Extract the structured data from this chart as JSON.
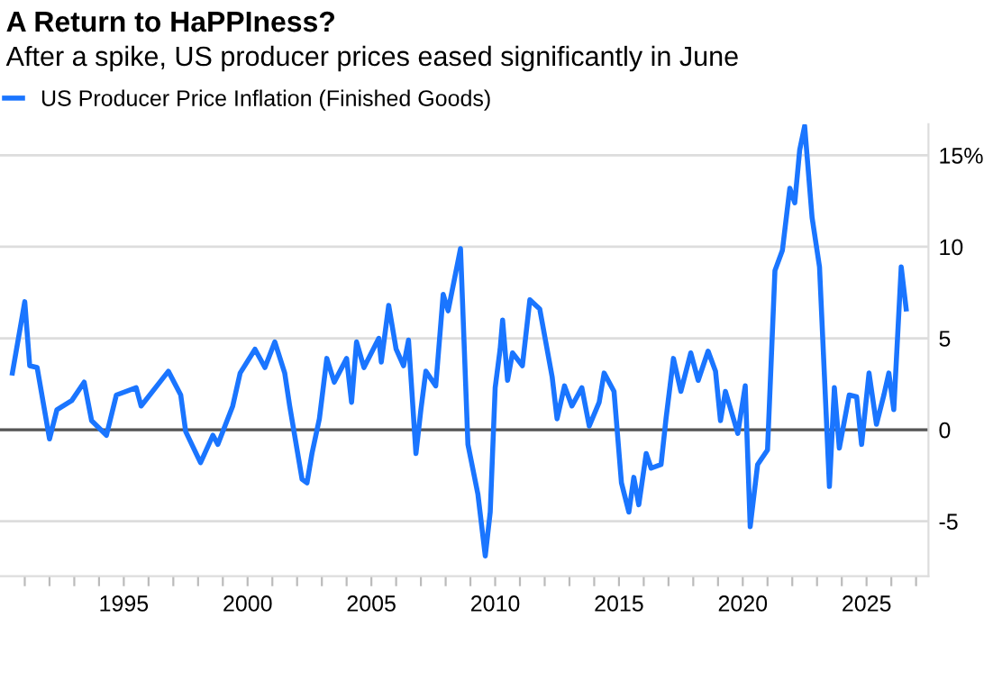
{
  "chart_data": {
    "type": "line",
    "title": "A Return to HaPPIness?",
    "subtitle": "After a spike, US producer prices eased significantly in June",
    "x": [
      1990.5,
      1991.0,
      1991.2,
      1991.5,
      1992.0,
      1992.3,
      1992.9,
      1993.4,
      1993.7,
      1994.3,
      1994.7,
      1995.5,
      1995.7,
      1996.8,
      1997.3,
      1997.5,
      1998.1,
      1998.6,
      1998.8,
      1999.4,
      1999.7,
      2000.3,
      2000.7,
      2001.1,
      2001.5,
      2001.7,
      2002.2,
      2002.4,
      2002.6,
      2002.9,
      2003.2,
      2003.5,
      2004.0,
      2004.2,
      2004.4,
      2004.7,
      2005.3,
      2005.4,
      2005.7,
      2006.0,
      2006.3,
      2006.5,
      2006.8,
      2007.0,
      2007.2,
      2007.6,
      2007.9,
      2008.1,
      2008.6,
      2008.9,
      2009.3,
      2009.6,
      2009.8,
      2010.0,
      2010.2,
      2010.3,
      2010.5,
      2010.7,
      2011.1,
      2011.4,
      2011.8,
      2012.3,
      2012.5,
      2012.8,
      2013.1,
      2013.5,
      2013.8,
      2014.2,
      2014.4,
      2014.8,
      2015.1,
      2015.4,
      2015.6,
      2015.8,
      2016.1,
      2016.3,
      2016.7,
      2016.9,
      2017.2,
      2017.5,
      2017.9,
      2018.2,
      2018.6,
      2018.9,
      2019.1,
      2019.3,
      2019.8,
      2020.1,
      2020.3,
      2020.6,
      2021.0,
      2021.3,
      2021.6,
      2021.9,
      2022.1,
      2022.3,
      2022.5,
      2022.8,
      2023.1,
      2023.3,
      2023.5,
      2023.7,
      2023.9,
      2024.3,
      2024.6,
      2024.8,
      2025.1,
      2025.4,
      2025.7,
      2025.9,
      2026.1,
      2026.4,
      2026.6
    ],
    "series": [
      {
        "name": "US Producer Price Inflation (Finished Goods)",
        "color": "#1a75ff",
        "values": [
          3.1,
          7.0,
          3.5,
          3.4,
          -0.5,
          1.1,
          1.6,
          2.6,
          0.5,
          -0.3,
          1.9,
          2.3,
          1.3,
          3.2,
          1.9,
          -0.1,
          -1.8,
          -0.3,
          -0.8,
          1.3,
          3.1,
          4.4,
          3.4,
          4.8,
          3.1,
          1.3,
          -2.7,
          -2.9,
          -1.3,
          0.6,
          3.9,
          2.6,
          3.9,
          1.5,
          4.8,
          3.4,
          5.0,
          3.7,
          6.8,
          4.4,
          3.5,
          4.9,
          -1.3,
          1.1,
          3.2,
          2.4,
          7.4,
          6.5,
          9.9,
          -0.8,
          -3.5,
          -6.9,
          -4.5,
          2.3,
          4.4,
          6.0,
          2.7,
          4.2,
          3.5,
          7.1,
          6.6,
          2.9,
          0.6,
          2.4,
          1.3,
          2.3,
          0.2,
          1.5,
          3.1,
          2.1,
          -2.9,
          -4.5,
          -2.6,
          -4.1,
          -1.3,
          -2.1,
          -1.9,
          0.6,
          3.9,
          2.1,
          4.2,
          2.7,
          4.3,
          3.2,
          0.5,
          2.1,
          -0.2,
          2.4,
          -5.3,
          -1.9,
          -1.1,
          8.7,
          9.8,
          13.2,
          12.4,
          15.3,
          16.6,
          11.6,
          8.9,
          2.9,
          -3.1,
          2.3,
          -1.0,
          1.9,
          1.8,
          -0.8,
          3.1,
          0.3,
          1.9,
          3.1,
          1.1,
          8.9,
          6.6
        ]
      }
    ],
    "xlim": [
      1990,
      2027.5
    ],
    "xticks": [
      {
        "value": 1991,
        "label": null
      },
      {
        "value": 1992,
        "label": null
      },
      {
        "value": 1993,
        "label": null
      },
      {
        "value": 1994,
        "label": null
      },
      1995,
      {
        "value": 1996,
        "label": null
      },
      {
        "value": 1997,
        "label": null
      },
      {
        "value": 1998,
        "label": null
      },
      {
        "value": 1999,
        "label": null
      },
      2000,
      {
        "value": 2001,
        "label": null
      },
      {
        "value": 2002,
        "label": null
      },
      {
        "value": 2003,
        "label": null
      },
      {
        "value": 2004,
        "label": null
      },
      2005,
      {
        "value": 2006,
        "label": null
      },
      {
        "value": 2007,
        "label": null
      },
      {
        "value": 2008,
        "label": null
      },
      {
        "value": 2009,
        "label": null
      },
      2010,
      {
        "value": 2011,
        "label": null
      },
      {
        "value": 2012,
        "label": null
      },
      {
        "value": 2013,
        "label": null
      },
      {
        "value": 2014,
        "label": null
      },
      2015,
      {
        "value": 2016,
        "label": null
      },
      {
        "value": 2017,
        "label": null
      },
      {
        "value": 2018,
        "label": null
      },
      {
        "value": 2019,
        "label": null
      },
      2020,
      {
        "value": 2021,
        "label": null
      },
      {
        "value": 2022,
        "label": null
      },
      {
        "value": 2023,
        "label": null
      },
      {
        "value": 2024,
        "label": null
      },
      2025,
      {
        "value": 2026,
        "label": null
      },
      {
        "value": 2027,
        "label": null
      }
    ],
    "ylim": [
      -8,
      16.7
    ],
    "yticks": [
      {
        "value": -5,
        "label": "-5"
      },
      0,
      5,
      10,
      {
        "value": 15,
        "label": "15%"
      }
    ],
    "grid": "y",
    "legend": "top left",
    "ref_lines": [
      {
        "axis": "y",
        "value": 0,
        "label": null,
        "color": "#555555"
      }
    ]
  }
}
